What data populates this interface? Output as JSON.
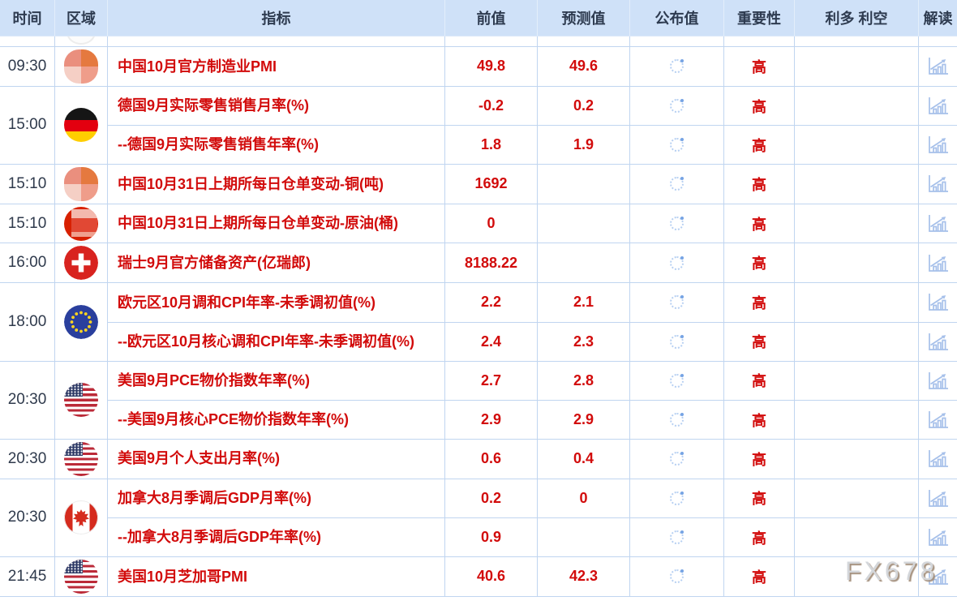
{
  "page": {
    "watermark": "FX678"
  },
  "colors": {
    "accent_red": "#d20b0b",
    "header_bg": "#cfe1f8",
    "grid_border": "#c0d5f0",
    "icon_blue": "#a6c0ea",
    "time_text": "#2f3a4c"
  },
  "header": {
    "columns": [
      {
        "label": "时间"
      },
      {
        "label": "区域"
      },
      {
        "label": "指标"
      },
      {
        "label": "前值"
      },
      {
        "label": "预测值"
      },
      {
        "label": "公布值"
      },
      {
        "label": "重要性"
      },
      {
        "label": "利多 利空"
      },
      {
        "label": "解读"
      }
    ]
  },
  "published_state": "loading",
  "icons": {
    "published": "spinner-icon",
    "interpret": "chart-icon"
  },
  "groups": [
    {
      "time": "09:30",
      "flag": "china",
      "rows": [
        {
          "indicator": "中国10月官方制造业PMI",
          "previous": "49.8",
          "forecast": "49.6",
          "published": "",
          "importance": "高",
          "bull_bear": ""
        }
      ]
    },
    {
      "time": "15:00",
      "flag": "germany",
      "rows": [
        {
          "indicator": "德国9月实际零售销售月率(%)",
          "previous": "-0.2",
          "forecast": "0.2",
          "published": "",
          "importance": "高",
          "bull_bear": ""
        },
        {
          "indicator": "--德国9月实际零售销售年率(%)",
          "previous": "1.8",
          "forecast": "1.9",
          "published": "",
          "importance": "高",
          "bull_bear": ""
        }
      ]
    },
    {
      "time": "15:10",
      "flag": "china",
      "rows": [
        {
          "indicator": "中国10月31日上期所每日仓单变动-铜(吨)",
          "previous": "1692",
          "forecast": "",
          "published": "",
          "importance": "高",
          "bull_bear": ""
        }
      ]
    },
    {
      "time": "15:10",
      "flag": "china-pixel",
      "rows": [
        {
          "indicator": "中国10月31日上期所每日仓单变动-原油(桶)",
          "previous": "0",
          "forecast": "",
          "published": "",
          "importance": "高",
          "bull_bear": ""
        }
      ]
    },
    {
      "time": "16:00",
      "flag": "switzerland",
      "rows": [
        {
          "indicator": "瑞士9月官方储备资产(亿瑞郎)",
          "previous": "8188.22",
          "forecast": "",
          "published": "",
          "importance": "高",
          "bull_bear": ""
        }
      ]
    },
    {
      "time": "18:00",
      "flag": "eu",
      "rows": [
        {
          "indicator": "欧元区10月调和CPI年率-未季调初值(%)",
          "previous": "2.2",
          "forecast": "2.1",
          "published": "",
          "importance": "高",
          "bull_bear": ""
        },
        {
          "indicator": "--欧元区10月核心调和CPI年率-未季调初值(%)",
          "previous": "2.4",
          "forecast": "2.3",
          "published": "",
          "importance": "高",
          "bull_bear": ""
        }
      ]
    },
    {
      "time": "20:30",
      "flag": "usa",
      "rows": [
        {
          "indicator": "美国9月PCE物价指数年率(%)",
          "previous": "2.7",
          "forecast": "2.8",
          "published": "",
          "importance": "高",
          "bull_bear": ""
        },
        {
          "indicator": "--美国9月核心PCE物价指数年率(%)",
          "previous": "2.9",
          "forecast": "2.9",
          "published": "",
          "importance": "高",
          "bull_bear": ""
        }
      ]
    },
    {
      "time": "20:30",
      "flag": "usa",
      "rows": [
        {
          "indicator": "美国9月个人支出月率(%)",
          "previous": "0.6",
          "forecast": "0.4",
          "published": "",
          "importance": "高",
          "bull_bear": ""
        }
      ]
    },
    {
      "time": "20:30",
      "flag": "canada",
      "rows": [
        {
          "indicator": "加拿大8月季调后GDP月率(%)",
          "previous": "0.2",
          "forecast": "0",
          "published": "",
          "importance": "高",
          "bull_bear": ""
        },
        {
          "indicator": "--加拿大8月季调后GDP年率(%)",
          "previous": "0.9",
          "forecast": "",
          "published": "",
          "importance": "高",
          "bull_bear": ""
        }
      ]
    },
    {
      "time": "21:45",
      "flag": "usa",
      "rows": [
        {
          "indicator": "美国10月芝加哥PMI",
          "previous": "40.6",
          "forecast": "42.3",
          "published": "",
          "importance": "高",
          "bull_bear": ""
        }
      ]
    }
  ]
}
